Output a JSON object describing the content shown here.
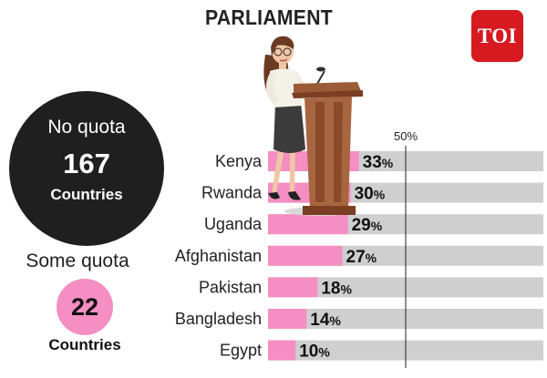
{
  "header": {
    "title": "PARLIAMENT"
  },
  "logo": {
    "text": "TOI",
    "color": "#d71920"
  },
  "no_quota": {
    "label": "No quota",
    "count": "167",
    "unit": "Countries"
  },
  "some_quota": {
    "label": "Some quota",
    "count": "22",
    "unit": "Countries"
  },
  "chart_data": {
    "type": "bar",
    "orientation": "horizontal",
    "categories": [
      "Kenya",
      "Rwanda",
      "Uganda",
      "Afghanistan",
      "Pakistan",
      "Bangladesh",
      "Egypt"
    ],
    "values": [
      33,
      30,
      29,
      27,
      18,
      14,
      10
    ],
    "value_labels": [
      "33",
      "30",
      "29",
      "27",
      "18",
      "14",
      "10"
    ],
    "value_suffix": "%",
    "xlim": [
      0,
      100
    ],
    "reference_line": {
      "value": 50,
      "label": "50%"
    },
    "colors": {
      "bar": "#f48ec3",
      "track": "#cfcfcf",
      "reference": "#222222"
    }
  },
  "illustration": {
    "icon": "woman-at-podium-icon"
  }
}
